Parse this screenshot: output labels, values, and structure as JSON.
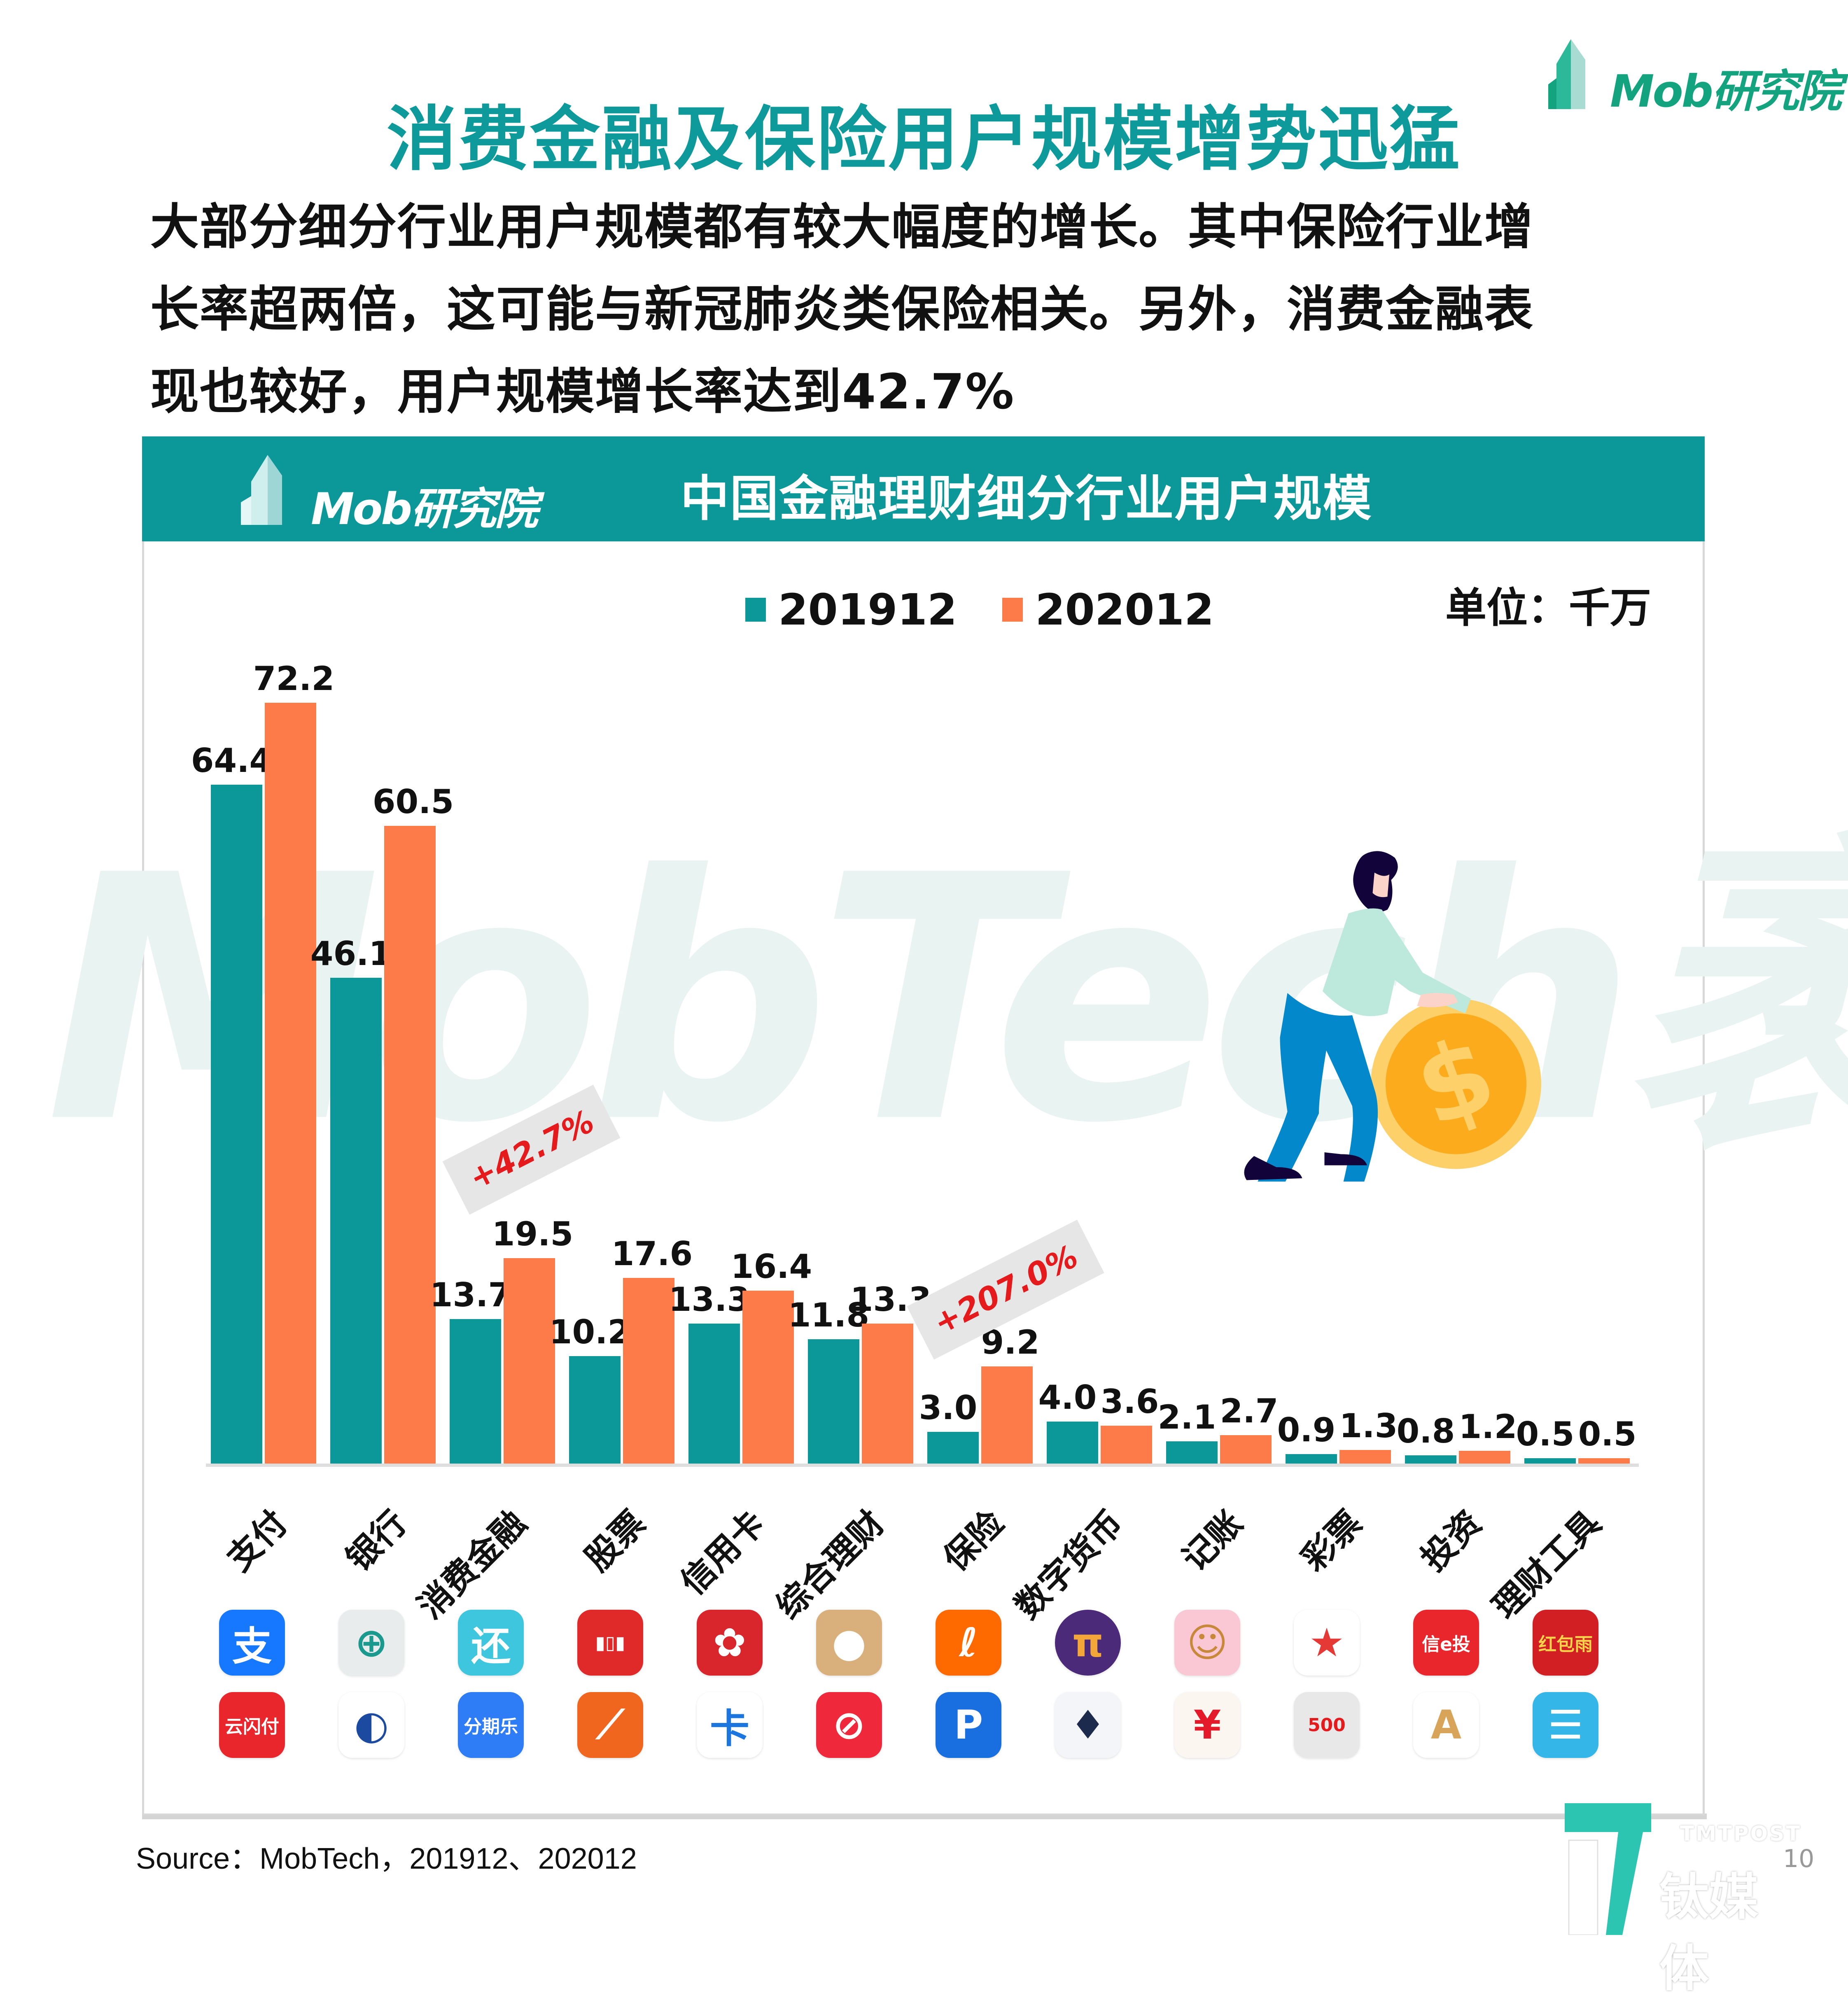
{
  "brand": {
    "logo_text": "Mob研究院",
    "accent_color": "#0e9a9a",
    "header_color": "#0c9799",
    "logo_green": "#14a37f"
  },
  "header": {
    "title": "消费金融及保险用户规模增势迅猛",
    "body_lines": [
      "大部分细分行业用户规模都有较大幅度的增长。其中保险行业增",
      "长率超两倍，这可能与新冠肺炎类保险相关。另外，消费金融表",
      "现也较好，用户规模增长率达到42.7%"
    ]
  },
  "card": {
    "title": "中国金融理财细分行业用户规模",
    "watermark": "MobTech袤博",
    "unit_label": "单位：千万"
  },
  "chart_data": {
    "type": "bar",
    "title": "中国金融理财细分行业用户规模",
    "xlabel": "",
    "ylabel": "单位：千万",
    "ylim": [
      0,
      75
    ],
    "grid": false,
    "legend_position": "top",
    "categories": [
      "支付",
      "银行",
      "消费金融",
      "股票",
      "信用卡",
      "综合理财",
      "保险",
      "数字货币",
      "记账",
      "彩票",
      "投资",
      "理财工具"
    ],
    "series": [
      {
        "name": "201912",
        "color": "#0c9799",
        "values": [
          64.4,
          46.1,
          13.7,
          10.2,
          13.3,
          11.8,
          3.0,
          4.0,
          2.1,
          0.9,
          0.8,
          0.5
        ],
        "labels": [
          "64.4",
          "46.1",
          "13.7",
          "10.2",
          "13.3",
          "11.8",
          "3.0",
          "4.0",
          "2.1",
          "0.9",
          "0.8",
          "0.5"
        ]
      },
      {
        "name": "202012",
        "color": "#fd7b48",
        "values": [
          72.2,
          60.5,
          19.5,
          17.6,
          16.4,
          13.3,
          9.2,
          3.6,
          2.7,
          1.3,
          1.2,
          0.5
        ],
        "labels": [
          "72.2",
          "60.5",
          "19.5",
          "17.6",
          "16.4",
          "13.3",
          "9.2",
          "3.6",
          "2.7",
          "1.3",
          "1.2",
          "0.5"
        ]
      }
    ],
    "annotations": [
      {
        "category": "消费金融",
        "text": "+42.7%"
      },
      {
        "category": "保险",
        "text": "+207.0%"
      }
    ]
  },
  "legend": [
    {
      "label": "201912",
      "color": "#0c9799"
    },
    {
      "label": "202012",
      "color": "#fd7b48"
    }
  ],
  "app_icons": [
    [
      {
        "name": "alipay-icon",
        "glyph": "支",
        "bg": "#1677ff",
        "fg": "#ffffff"
      },
      {
        "name": "unionpay-icon",
        "glyph": "云闪付",
        "bg": "#e8262c",
        "fg": "#ffffff"
      }
    ],
    [
      {
        "name": "abc-bank-icon",
        "glyph": "⊕",
        "bg": "#e9ecec",
        "fg": "#1a9a8e"
      },
      {
        "name": "bank-app-icon",
        "glyph": "◐",
        "bg": "#ffffff",
        "fg": "#1b4aa0"
      }
    ],
    [
      {
        "name": "huanbei-icon",
        "glyph": "还",
        "bg": "#3fc6df",
        "fg": "#ffffff"
      },
      {
        "name": "fenqile-icon",
        "glyph": "分期乐",
        "bg": "#2e7cf6",
        "fg": "#ffffff"
      }
    ],
    [
      {
        "name": "stock-chart-icon",
        "glyph": "▮▯▮",
        "bg": "#e02a2a",
        "fg": "#ffffff"
      },
      {
        "name": "eastmoney-icon",
        "glyph": "⟋",
        "bg": "#f0661e",
        "fg": "#ffffff"
      }
    ],
    [
      {
        "name": "bank-flower-icon",
        "glyph": "✿",
        "bg": "#d9262c",
        "fg": "#ffffff"
      },
      {
        "name": "card-app-icon",
        "glyph": "卡",
        "bg": "#ffffff",
        "fg": "#1b76e0"
      }
    ],
    [
      {
        "name": "wealth-cat-icon",
        "glyph": "●",
        "bg": "#d9b07b",
        "fg": "#ffffff"
      },
      {
        "name": "wealth-ring-icon",
        "glyph": "⊘",
        "bg": "#f0283c",
        "fg": "#ffffff"
      }
    ],
    [
      {
        "name": "insurance-orange-icon",
        "glyph": "ℓ",
        "bg": "#ff6a00",
        "fg": "#ffffff"
      },
      {
        "name": "insurance-blue-icon",
        "glyph": "P",
        "bg": "#1a6fe0",
        "fg": "#ffffff"
      }
    ],
    [
      {
        "name": "pi-coin-icon",
        "glyph": "π",
        "bg": "#4b2a7a",
        "fg": "#f3a738"
      },
      {
        "name": "huobi-icon",
        "glyph": "♦",
        "bg": "#f4f5f8",
        "fg": "#1c2b4d"
      }
    ],
    [
      {
        "name": "bookkeeping-cat-icon",
        "glyph": "☺",
        "bg": "#f9c8d4",
        "fg": "#c7883a"
      },
      {
        "name": "yen-icon",
        "glyph": "¥",
        "bg": "#fbf6ef",
        "fg": "#e41a2a"
      }
    ],
    [
      {
        "name": "lottery-star-icon",
        "glyph": "★",
        "bg": "#ffffff",
        "fg": "#e53935"
      },
      {
        "name": "500-com-icon",
        "glyph": "500",
        "bg": "#e8e8e8",
        "fg": "#e41a1c"
      }
    ],
    [
      {
        "name": "citic-icon",
        "glyph": "信e投",
        "bg": "#e8262c",
        "fg": "#ffffff"
      },
      {
        "name": "invest-a-icon",
        "glyph": "A",
        "bg": "#ffffff",
        "fg": "#d7a45a"
      }
    ],
    [
      {
        "name": "hongbaoyu-icon",
        "glyph": "红包雨",
        "bg": "#d21f23",
        "fg": "#f7d24a"
      },
      {
        "name": "finance-tool-icon",
        "glyph": "☰",
        "bg": "#35b6e8",
        "fg": "#ffffff"
      }
    ]
  ],
  "footer": {
    "source": "Source：MobTech，201912、202012",
    "tmtpost_en": "TMTPOST",
    "tmtpost_cn": "钛媒体",
    "page_number": "10"
  }
}
